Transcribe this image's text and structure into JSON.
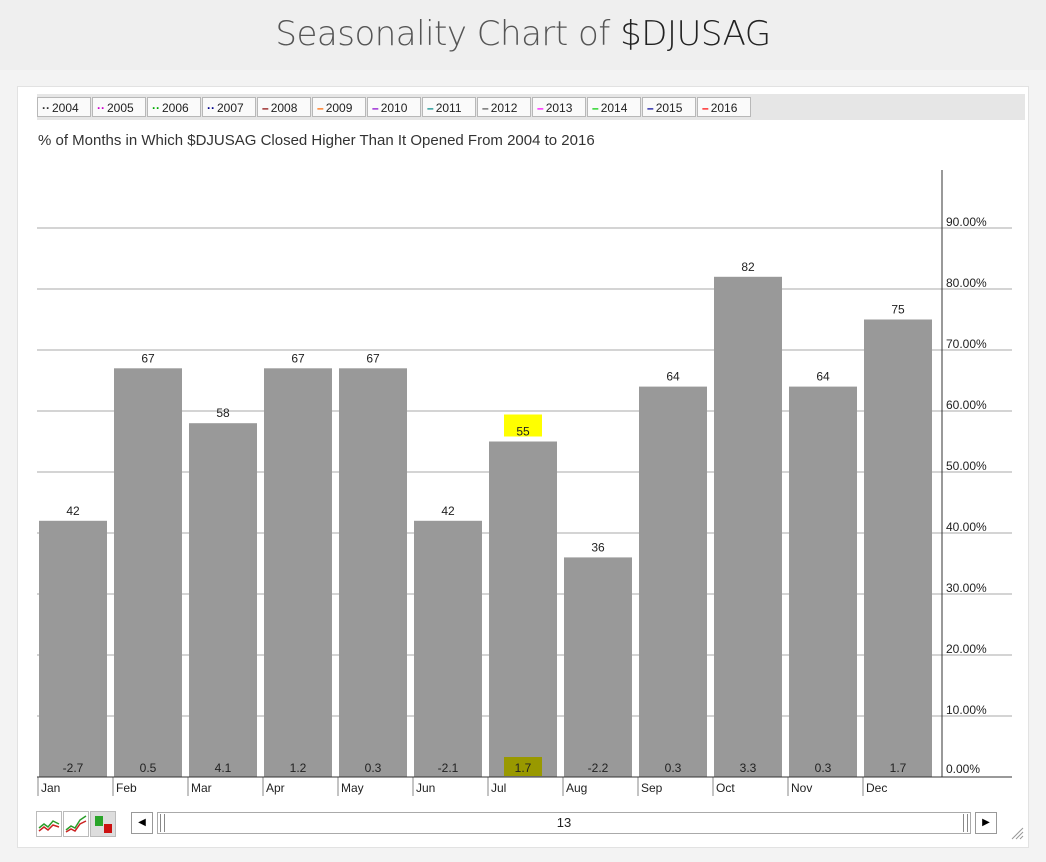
{
  "page": {
    "title_prefix": "Seasonality Chart of ",
    "title_ticker": "$DJUSAG"
  },
  "legend": [
    {
      "label": "2004",
      "symbol": "··",
      "color": "#333333"
    },
    {
      "label": "2005",
      "symbol": "··",
      "color": "#cc00cc"
    },
    {
      "label": "2006",
      "symbol": "··",
      "color": "#00aa00"
    },
    {
      "label": "2007",
      "symbol": "··",
      "color": "#000088"
    },
    {
      "label": "2008",
      "symbol": "–",
      "color": "#880000"
    },
    {
      "label": "2009",
      "symbol": "–",
      "color": "#ff6600"
    },
    {
      "label": "2010",
      "symbol": "–",
      "color": "#8800cc"
    },
    {
      "label": "2011",
      "symbol": "–",
      "color": "#008888"
    },
    {
      "label": "2012",
      "symbol": "–",
      "color": "#555555"
    },
    {
      "label": "2013",
      "symbol": "–",
      "color": "#ff00ff"
    },
    {
      "label": "2014",
      "symbol": "–",
      "color": "#00cc00"
    },
    {
      "label": "2015",
      "symbol": "–",
      "color": "#000099"
    },
    {
      "label": "2016",
      "symbol": "–",
      "color": "#ff0000"
    }
  ],
  "chart_data": {
    "type": "bar",
    "title": "% of Months in Which $DJUSAG Closed Higher Than It Opened From 2004 to 2016",
    "categories": [
      "Jan",
      "Feb",
      "Mar",
      "Apr",
      "May",
      "Jun",
      "Jul",
      "Aug",
      "Sep",
      "Oct",
      "Nov",
      "Dec"
    ],
    "values": [
      42,
      67,
      58,
      67,
      67,
      42,
      55,
      36,
      64,
      82,
      64,
      75
    ],
    "avg_change": [
      "-2.7",
      "0.5",
      "4.1",
      "1.2",
      "0.3",
      "-2.1",
      "1.7",
      "-2.2",
      "0.3",
      "3.3",
      "0.3",
      "1.7"
    ],
    "highlight_index": 6,
    "highlight_color": "#ffff00",
    "bar_color": "#999999",
    "ylim": [
      0,
      100
    ],
    "yticks": [
      0,
      10,
      20,
      30,
      40,
      50,
      60,
      70,
      80,
      90
    ],
    "ytick_labels": [
      "0.00%",
      "10.00%",
      "20.00%",
      "30.00%",
      "40.00%",
      "50.00%",
      "60.00%",
      "70.00%",
      "80.00%",
      "90.00%"
    ],
    "y_axis_position": "right",
    "grid": true
  },
  "scrollbar": {
    "label": "13",
    "left_arrow": "◀",
    "right_arrow": "▶"
  },
  "tools": [
    "line-chart-icon",
    "performance-chart-icon",
    "seasonality-bar-icon"
  ]
}
